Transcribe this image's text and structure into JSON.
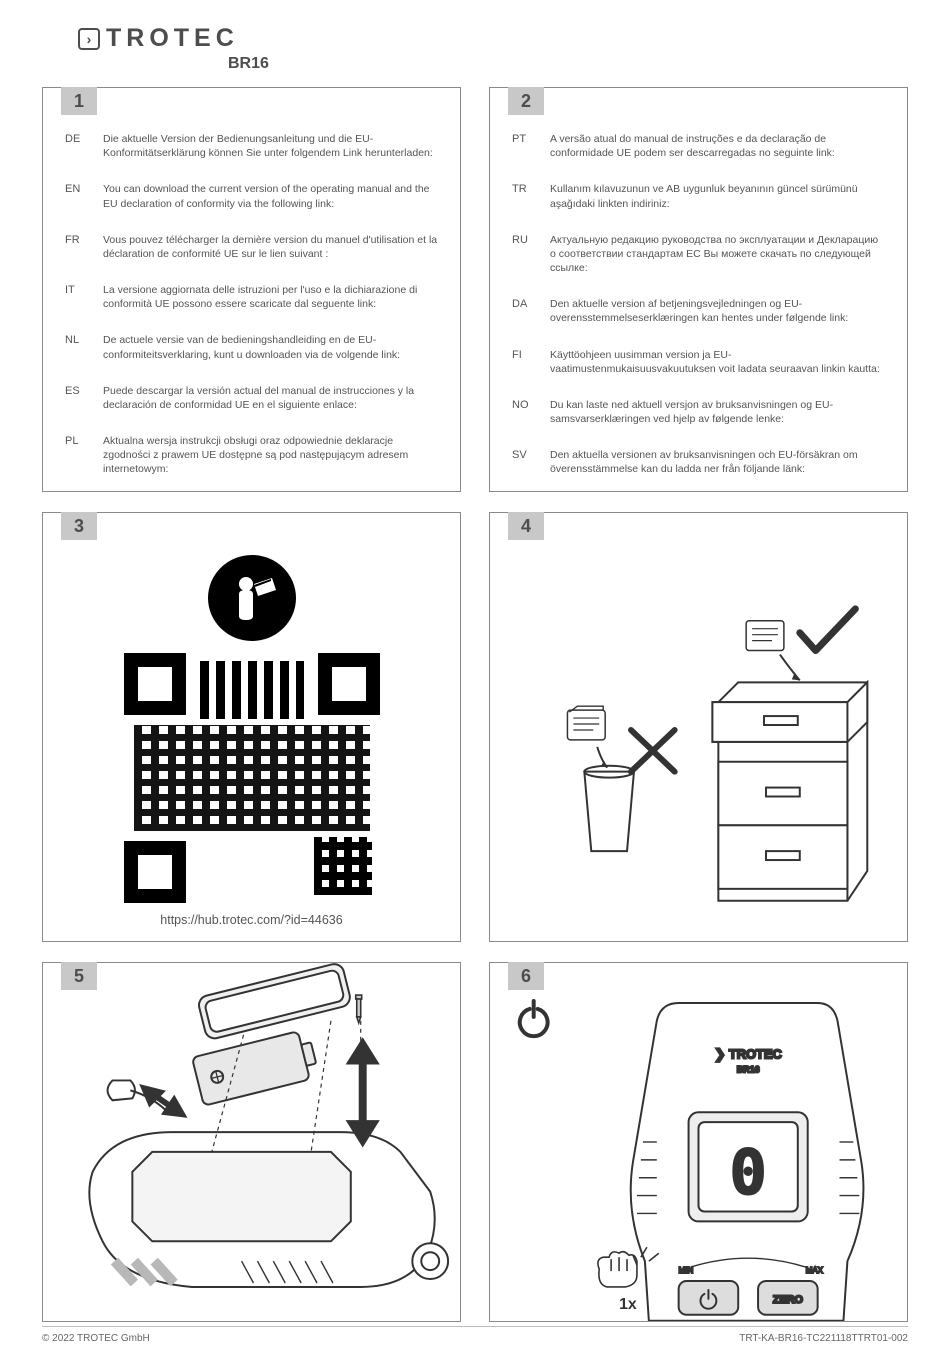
{
  "brand": "TROTEC",
  "model": "BR16",
  "panels": {
    "p1": {
      "num": "1"
    },
    "p2": {
      "num": "2"
    },
    "p3": {
      "num": "3",
      "url": "https://hub.trotec.com/?id=44636"
    },
    "p4": {
      "num": "4"
    },
    "p5": {
      "num": "5"
    },
    "p6": {
      "num": "6",
      "press": "1x",
      "display": "0"
    }
  },
  "langs1": [
    {
      "code": "DE",
      "text": "Die aktuelle Version der Bedienungsanleitung und die EU-Konformitätserklärung können Sie unter folgendem Link herunterladen:"
    },
    {
      "code": "EN",
      "text": "You can download the current version of the operating manual and the EU declaration of conformity via the following link:"
    },
    {
      "code": "FR",
      "text": "Vous pouvez télécharger la dernière version du manuel d'utilisation et la déclaration de conformité UE sur le lien suivant :"
    },
    {
      "code": "IT",
      "text": "La versione aggiornata delle istruzioni per l'uso e la dichiarazione di conformità UE possono essere scaricate dal seguente link:"
    },
    {
      "code": "NL",
      "text": "De actuele versie van de bedieningshandleiding en de EU-conformiteitsverklaring, kunt u downloaden via de volgende link:"
    },
    {
      "code": "ES",
      "text": "Puede descargar la versión actual del manual de instrucciones y la declaración de conformidad UE en el siguiente enlace:"
    },
    {
      "code": "PL",
      "text": "Aktualna wersja instrukcji obsługi oraz odpowiednie deklaracje zgodności z prawem UE dostępne są pod następującym adresem internetowym:"
    }
  ],
  "langs2": [
    {
      "code": "PT",
      "text": "A versão atual do manual de instruções e da declaração de conformidade UE podem ser descarregadas no seguinte link:"
    },
    {
      "code": "TR",
      "text": "Kullanım kılavuzunun ve AB uygunluk beyanının güncel sürümünü aşağıdaki linkten indiriniz:"
    },
    {
      "code": "RU",
      "text": "Актуальную редакцию руководства по эксплуатации и Декларацию о соответствии стандартам ЕС Вы можете скачать по следующей ссылке:"
    },
    {
      "code": "DA",
      "text": "Den aktuelle version af betjeningsvejledningen og EU-overensstemmelseserklæringen kan hentes under følgende link:"
    },
    {
      "code": "FI",
      "text": "Käyttöohjeen uusimman version ja EU-vaatimustenmukaisuusvakuutuksen voit ladata seuraavan linkin kautta:"
    },
    {
      "code": "NO",
      "text": "Du kan laste ned aktuell versjon av bruksanvisningen og EU-samsvarserklæringen ved hjelp av følgende lenke:"
    },
    {
      "code": "SV",
      "text": "Den aktuella versionen av bruksanvisningen och EU-försäkran om överensstämmelse kan du ladda ner från följande länk:"
    }
  ],
  "footer": {
    "copyright": "© 2022 TROTEC GmbH",
    "docnum": "TRT-KA-BR16-TC221118TTRT01-002"
  },
  "colors": {
    "border": "#8a8a8a",
    "text": "#4d4d4d",
    "numbox": "#c8c8c8"
  }
}
